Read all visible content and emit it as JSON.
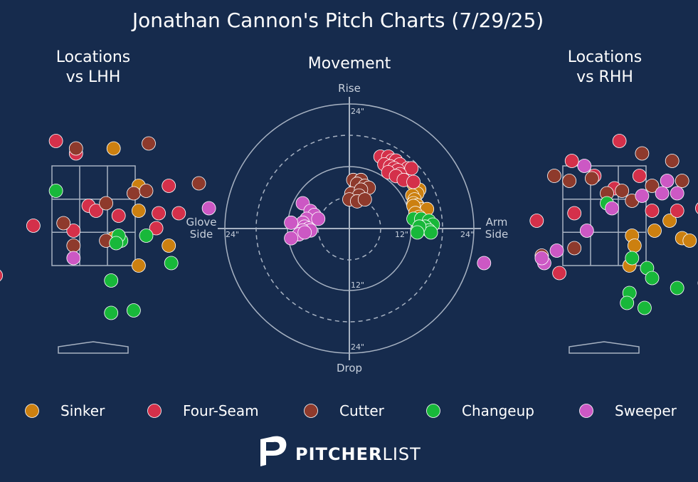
{
  "title": "Jonathan Cannon's Pitch Charts (7/29/25)",
  "colors": {
    "background": "#162b4d",
    "Sinker": "#cc8010",
    "Four-Seam": "#d4304a",
    "Cutter": "#8e3a2c",
    "Changeup": "#18b83a",
    "Sweeper": "#cc58c4",
    "lines": "#a7b2c2"
  },
  "legend": [
    "Sinker",
    "Four-Seam",
    "Cutter",
    "Changeup",
    "Sweeper"
  ],
  "brand": {
    "name_bold": "PITCHER",
    "name_light": "LIST"
  },
  "chart_data": [
    {
      "type": "scatter",
      "title": "Locations vs LHH",
      "xlabel": "",
      "ylabel": "",
      "xlim": [
        -2.5,
        2.5
      ],
      "ylim": [
        -0.5,
        5.0
      ],
      "notes": "Horizontal plate location (ft) vs vertical location (ft), catcher's view; strike zone 3x3 grid.",
      "series": [
        {
          "name": "Sinker",
          "points": [
            [
              0.4,
              3.85
            ],
            [
              0.9,
              3.1
            ],
            [
              0.4,
              2.05
            ],
            [
              0.9,
              1.5
            ],
            [
              1.5,
              1.9
            ],
            [
              0.9,
              2.6
            ]
          ]
        },
        {
          "name": "Four-Seam",
          "points": [
            [
              -0.75,
              4.0
            ],
            [
              -0.35,
              3.75
            ],
            [
              1.5,
              3.1
            ],
            [
              -0.1,
              2.7
            ],
            [
              0.05,
              2.6
            ],
            [
              0.5,
              2.5
            ],
            [
              1.3,
              2.55
            ],
            [
              1.7,
              2.55
            ],
            [
              1.25,
              2.25
            ],
            [
              -0.4,
              2.2
            ],
            [
              -1.2,
              2.3
            ],
            [
              -1.95,
              1.3
            ]
          ]
        },
        {
          "name": "Cutter",
          "points": [
            [
              -0.35,
              3.85
            ],
            [
              1.1,
              3.95
            ],
            [
              0.8,
              2.95
            ],
            [
              1.05,
              3.0
            ],
            [
              0.25,
              2.75
            ],
            [
              -0.6,
              2.35
            ],
            [
              2.1,
              3.15
            ],
            [
              0.25,
              2.0
            ],
            [
              -0.4,
              1.9
            ],
            [
              -2.5,
              2.1
            ]
          ]
        },
        {
          "name": "Changeup",
          "points": [
            [
              -0.75,
              3.0
            ],
            [
              0.55,
              2.0
            ],
            [
              1.05,
              2.1
            ],
            [
              0.5,
              2.1
            ],
            [
              1.55,
              1.55
            ],
            [
              0.35,
              1.2
            ],
            [
              0.8,
              0.6
            ],
            [
              0.35,
              0.55
            ],
            [
              0.45,
              1.95
            ]
          ]
        },
        {
          "name": "Sweeper",
          "points": [
            [
              -0.4,
              1.65
            ],
            [
              2.3,
              2.65
            ]
          ]
        }
      ]
    },
    {
      "type": "scatter",
      "title": "Movement",
      "xlabel": "Glove Side / Arm Side",
      "ylabel": "Drop / Rise",
      "radial_ticks": [
        "12\"",
        "24\""
      ],
      "axis_labels": {
        "top": "Rise",
        "bottom": "Drop",
        "left_line1": "Glove",
        "left_line2": "Side",
        "right_line1": "Arm",
        "right_line2": "Side"
      },
      "xlim": [
        -28,
        28
      ],
      "ylim": [
        -28,
        28
      ],
      "notes": "Horizontal break (in) vs induced vertical break (in).",
      "series": [
        {
          "name": "Sinker",
          "points": [
            [
              16.5,
              11.5
            ],
            [
              18.0,
              10.0
            ],
            [
              17.5,
              9.0
            ],
            [
              16.2,
              8.5
            ],
            [
              16.8,
              7.5
            ],
            [
              16.5,
              6.5
            ],
            [
              17.5,
              6.0
            ],
            [
              18.5,
              5.0
            ],
            [
              20.0,
              5.0
            ],
            [
              16.5,
              5.8
            ],
            [
              17.0,
              4.0
            ],
            [
              18.0,
              3.0
            ]
          ]
        },
        {
          "name": "Four-Seam",
          "points": [
            [
              8.0,
              18.5
            ],
            [
              10.0,
              18.5
            ],
            [
              11.0,
              17.5
            ],
            [
              12.0,
              17.5
            ],
            [
              13.0,
              16.5
            ],
            [
              15.0,
              15.5
            ],
            [
              16.0,
              15.5
            ],
            [
              9.0,
              16.5
            ],
            [
              10.5,
              16.0
            ],
            [
              11.5,
              15.5
            ],
            [
              12.5,
              15.0
            ],
            [
              13.0,
              14.0
            ],
            [
              10.0,
              14.5
            ],
            [
              12.0,
              13.5
            ],
            [
              14.0,
              12.5
            ],
            [
              16.5,
              12.0
            ]
          ]
        },
        {
          "name": "Cutter",
          "points": [
            [
              1.0,
              12.5
            ],
            [
              3.0,
              12.5
            ],
            [
              2.0,
              11.5
            ],
            [
              4.0,
              11.0
            ],
            [
              5.0,
              10.5
            ],
            [
              0.5,
              9.0
            ],
            [
              3.0,
              10.0
            ],
            [
              2.5,
              8.5
            ],
            [
              0,
              7.5
            ],
            [
              2.0,
              7.0
            ],
            [
              4.0,
              7.5
            ]
          ]
        },
        {
          "name": "Changeup",
          "points": [
            [
              16.5,
              2.5
            ],
            [
              18.5,
              2.5
            ],
            [
              20.5,
              2.0
            ],
            [
              21.5,
              1.0
            ],
            [
              19.5,
              0.5
            ],
            [
              20.5,
              -0.5
            ],
            [
              21.0,
              -1.0
            ],
            [
              17.5,
              -0.5
            ],
            [
              18.0,
              0.5
            ],
            [
              17.5,
              -1.0
            ]
          ]
        },
        {
          "name": "Sweeper",
          "points": [
            [
              -12.0,
              6.5
            ],
            [
              -10.0,
              4.5
            ],
            [
              -9.0,
              3.5
            ],
            [
              -11.0,
              2.5
            ],
            [
              -8.0,
              2.5
            ],
            [
              -12.0,
              1.5
            ],
            [
              -15.0,
              1.5
            ],
            [
              -11.5,
              0.5
            ],
            [
              -10.5,
              0
            ],
            [
              -10.0,
              -0.5
            ],
            [
              -12.0,
              -0.5
            ],
            [
              -13.0,
              -1.5
            ],
            [
              -15.0,
              -2.5
            ],
            [
              -11.5,
              -1.0
            ]
          ]
        }
      ]
    },
    {
      "type": "scatter",
      "title": "Locations vs RHH",
      "xlabel": "",
      "ylabel": "",
      "xlim": [
        -2.5,
        2.5
      ],
      "ylim": [
        -0.5,
        5.0
      ],
      "notes": "Horizontal plate location (ft) vs vertical location (ft), catcher's view; strike zone 3x3 grid.",
      "series": [
        {
          "name": "Sinker",
          "points": [
            [
              0.55,
              2.1
            ],
            [
              0.6,
              1.9
            ],
            [
              0.5,
              1.5
            ],
            [
              1.0,
              2.2
            ],
            [
              1.3,
              2.4
            ],
            [
              1.55,
              2.05
            ],
            [
              1.7,
              2.0
            ],
            [
              2.5,
              2.85
            ]
          ]
        },
        {
          "name": "Four-Seam",
          "points": [
            [
              -0.65,
              3.6
            ],
            [
              0.2,
              3.05
            ],
            [
              0.7,
              3.3
            ],
            [
              0.3,
              4.0
            ],
            [
              0.95,
              2.6
            ],
            [
              1.45,
              2.6
            ],
            [
              1.95,
              2.65
            ],
            [
              -0.6,
              2.55
            ],
            [
              -0.2,
              3.3
            ],
            [
              -1.35,
              2.4
            ],
            [
              -0.9,
              1.35
            ]
          ]
        },
        {
          "name": "Cutter",
          "points": [
            [
              -1.0,
              3.3
            ],
            [
              -0.7,
              3.2
            ],
            [
              -0.25,
              3.25
            ],
            [
              0.35,
              3.0
            ],
            [
              0.95,
              3.1
            ],
            [
              1.55,
              3.2
            ],
            [
              1.35,
              3.6
            ],
            [
              0.75,
              3.75
            ],
            [
              0.55,
              2.8
            ],
            [
              -0.6,
              1.85
            ],
            [
              -1.25,
              1.7
            ],
            [
              0.05,
              2.95
            ]
          ]
        },
        {
          "name": "Changeup",
          "points": [
            [
              0.05,
              2.75
            ],
            [
              0.55,
              1.65
            ],
            [
              0.85,
              1.45
            ],
            [
              0.95,
              1.25
            ],
            [
              0.5,
              0.95
            ],
            [
              0.45,
              0.75
            ],
            [
              1.45,
              1.05
            ],
            [
              0.8,
              0.65
            ]
          ]
        },
        {
          "name": "Sweeper",
          "points": [
            [
              -0.4,
              3.5
            ],
            [
              1.25,
              3.2
            ],
            [
              0.15,
              2.65
            ],
            [
              0.75,
              2.9
            ],
            [
              1.15,
              2.95
            ],
            [
              1.45,
              2.95
            ],
            [
              -0.35,
              2.2
            ],
            [
              -0.95,
              1.8
            ],
            [
              -1.2,
              1.55
            ],
            [
              -1.25,
              1.65
            ],
            [
              -2.4,
              1.55
            ],
            [
              2.0,
              1.15
            ]
          ]
        }
      ]
    }
  ]
}
